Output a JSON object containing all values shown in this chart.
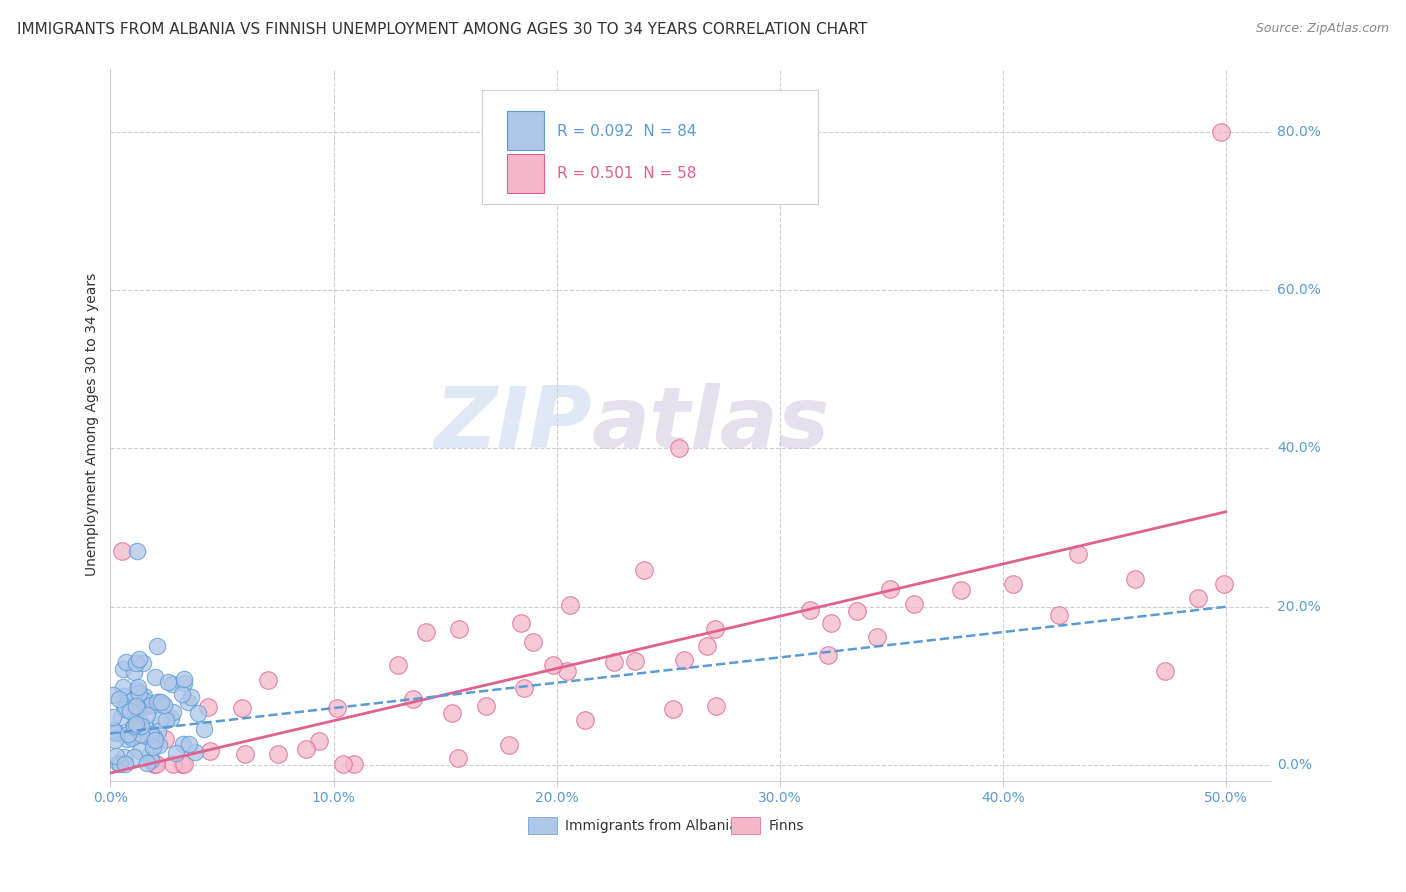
{
  "title": "IMMIGRANTS FROM ALBANIA VS FINNISH UNEMPLOYMENT AMONG AGES 30 TO 34 YEARS CORRELATION CHART",
  "source": "Source: ZipAtlas.com",
  "ylabel": "Unemployment Among Ages 30 to 34 years",
  "xlabel_ticks": [
    "0.0%",
    "10.0%",
    "20.0%",
    "30.0%",
    "40.0%",
    "50.0%"
  ],
  "ylabel_ticks_right": [
    "80.0%",
    "60.0%",
    "40.0%",
    "20.0%",
    "0.0%"
  ],
  "xlim": [
    0.0,
    0.52
  ],
  "ylim": [
    -0.02,
    0.88
  ],
  "legend1_label": "R = 0.092  N = 84",
  "legend2_label": "R = 0.501  N = 58",
  "legend_bottom_label1": "Immigrants from Albania",
  "legend_bottom_label2": "Finns",
  "watermark_zip": "ZIP",
  "watermark_atlas": "atlas",
  "blue_color": "#aec6e8",
  "blue_edge_color": "#5b9bd5",
  "pink_color": "#f4b8ca",
  "pink_edge_color": "#e06090",
  "blue_line_color": "#5b9bd5",
  "pink_line_color": "#e06090",
  "background_color": "#ffffff",
  "title_fontsize": 11,
  "tick_color": "#5b9bd5",
  "R_blue": 0.092,
  "N_blue": 84,
  "R_pink": 0.501,
  "N_pink": 58
}
